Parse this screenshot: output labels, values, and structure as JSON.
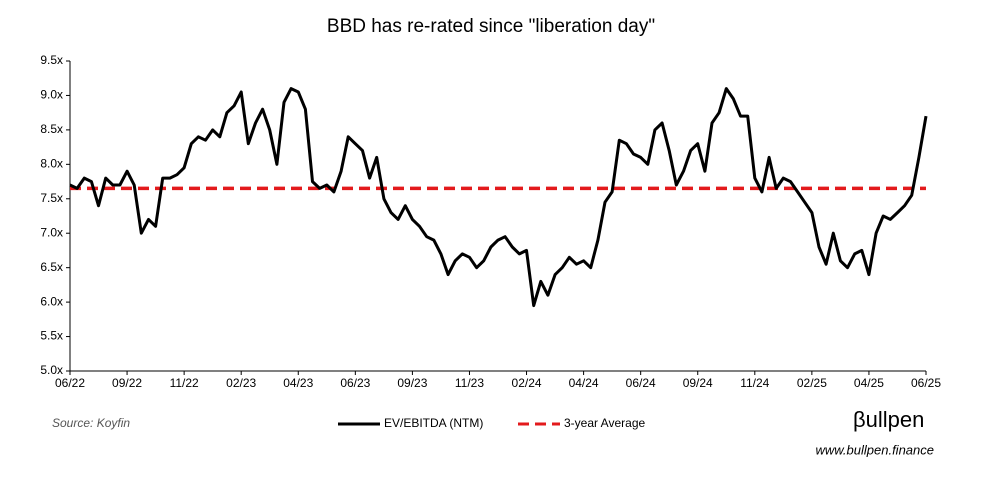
{
  "chart_data": {
    "type": "line",
    "title": "BBD has re-rated since \"liberation day\"",
    "source": "Source: Koyfin",
    "brand": "βullpen",
    "website": "www.bullpen.finance",
    "categories": [
      "06/22",
      null,
      null,
      null,
      null,
      null,
      null,
      null,
      "09/22",
      null,
      null,
      null,
      null,
      null,
      null,
      null,
      "11/22",
      null,
      null,
      null,
      null,
      null,
      null,
      null,
      "02/23",
      null,
      null,
      null,
      null,
      null,
      null,
      null,
      "04/23",
      null,
      null,
      null,
      null,
      null,
      null,
      null,
      "06/23",
      null,
      null,
      null,
      null,
      null,
      null,
      null,
      "09/23",
      null,
      null,
      null,
      null,
      null,
      null,
      null,
      "11/23",
      null,
      null,
      null,
      null,
      null,
      null,
      null,
      "02/24",
      null,
      null,
      null,
      null,
      null,
      null,
      null,
      "04/24",
      null,
      null,
      null,
      null,
      null,
      null,
      null,
      "06/24",
      null,
      null,
      null,
      null,
      null,
      null,
      null,
      "09/24",
      null,
      null,
      null,
      null,
      null,
      null,
      null,
      "11/24",
      null,
      null,
      null,
      null,
      null,
      null,
      null,
      "02/25",
      null,
      null,
      null,
      null,
      null,
      null,
      null,
      "04/25",
      null,
      null,
      null,
      null,
      null,
      null,
      null,
      "06/25"
    ],
    "series": [
      {
        "name": "EV/EBITDA (NTM)",
        "color": "#000000",
        "dash": false,
        "values": [
          7.7,
          7.65,
          7.8,
          7.75,
          7.4,
          7.8,
          7.7,
          7.7,
          7.9,
          7.7,
          7.0,
          7.2,
          7.1,
          7.8,
          7.8,
          7.85,
          7.95,
          8.3,
          8.4,
          8.35,
          8.5,
          8.4,
          8.75,
          8.85,
          9.05,
          8.3,
          8.6,
          8.8,
          8.5,
          8.0,
          8.9,
          9.1,
          9.05,
          8.8,
          7.75,
          7.65,
          7.7,
          7.6,
          7.9,
          8.4,
          8.3,
          8.2,
          7.8,
          8.1,
          7.5,
          7.3,
          7.2,
          7.4,
          7.2,
          7.1,
          6.95,
          6.9,
          6.7,
          6.4,
          6.6,
          6.7,
          6.65,
          6.5,
          6.6,
          6.8,
          6.9,
          6.95,
          6.8,
          6.7,
          6.75,
          5.95,
          6.3,
          6.1,
          6.4,
          6.5,
          6.65,
          6.55,
          6.6,
          6.5,
          6.9,
          7.45,
          7.6,
          8.35,
          8.3,
          8.15,
          8.1,
          8.0,
          8.5,
          8.6,
          8.2,
          7.7,
          7.9,
          8.2,
          8.3,
          7.9,
          8.6,
          8.75,
          9.1,
          8.95,
          8.7,
          8.7,
          7.8,
          7.6,
          8.1,
          7.65,
          7.8,
          7.75,
          7.6,
          7.45,
          7.3,
          6.8,
          6.55,
          7.0,
          6.6,
          6.5,
          6.7,
          6.75,
          6.4,
          7.0,
          7.25,
          7.2,
          7.3,
          7.4,
          7.55,
          8.1,
          8.7
        ]
      },
      {
        "name": "3-year Average",
        "color": "#e31a1c",
        "dash": true,
        "values": [
          7.65,
          7.65,
          7.65,
          7.65,
          7.65,
          7.65,
          7.65,
          7.65,
          7.65,
          7.65,
          7.65,
          7.65,
          7.65,
          7.65,
          7.65,
          7.65,
          7.65,
          7.65,
          7.65,
          7.65,
          7.65,
          7.65,
          7.65,
          7.65,
          7.65,
          7.65,
          7.65,
          7.65,
          7.65,
          7.65,
          7.65,
          7.65,
          7.65,
          7.65,
          7.65,
          7.65,
          7.65,
          7.65,
          7.65,
          7.65,
          7.65,
          7.65,
          7.65,
          7.65,
          7.65,
          7.65,
          7.65,
          7.65,
          7.65,
          7.65,
          7.65,
          7.65,
          7.65,
          7.65,
          7.65,
          7.65,
          7.65,
          7.65,
          7.65,
          7.65,
          7.65,
          7.65,
          7.65,
          7.65,
          7.65,
          7.65,
          7.65,
          7.65,
          7.65,
          7.65,
          7.65,
          7.65,
          7.65,
          7.65,
          7.65,
          7.65,
          7.65,
          7.65,
          7.65,
          7.65,
          7.65,
          7.65,
          7.65,
          7.65,
          7.65,
          7.65,
          7.65,
          7.65,
          7.65,
          7.65,
          7.65,
          7.65,
          7.65,
          7.65,
          7.65,
          7.65,
          7.65,
          7.65,
          7.65,
          7.65,
          7.65,
          7.65,
          7.65,
          7.65,
          7.65,
          7.65,
          7.65,
          7.65,
          7.65,
          7.65,
          7.65,
          7.65,
          7.65,
          7.65,
          7.65,
          7.65,
          7.65,
          7.65,
          7.65,
          7.65,
          7.65
        ]
      }
    ],
    "ylim": [
      5.0,
      9.5
    ],
    "yticks": [
      {
        "value": 5.0,
        "label": "5.0x"
      },
      {
        "value": 5.5,
        "label": "5.5x"
      },
      {
        "value": 6.0,
        "label": "6.0x"
      },
      {
        "value": 6.5,
        "label": "6.5x"
      },
      {
        "value": 7.0,
        "label": "7.0x"
      },
      {
        "value": 7.5,
        "label": "7.5x"
      },
      {
        "value": 8.0,
        "label": "8.0x"
      },
      {
        "value": 8.5,
        "label": "8.5x"
      },
      {
        "value": 9.0,
        "label": "9.0x"
      },
      {
        "value": 9.5,
        "label": "9.5x"
      }
    ],
    "grid": false
  }
}
